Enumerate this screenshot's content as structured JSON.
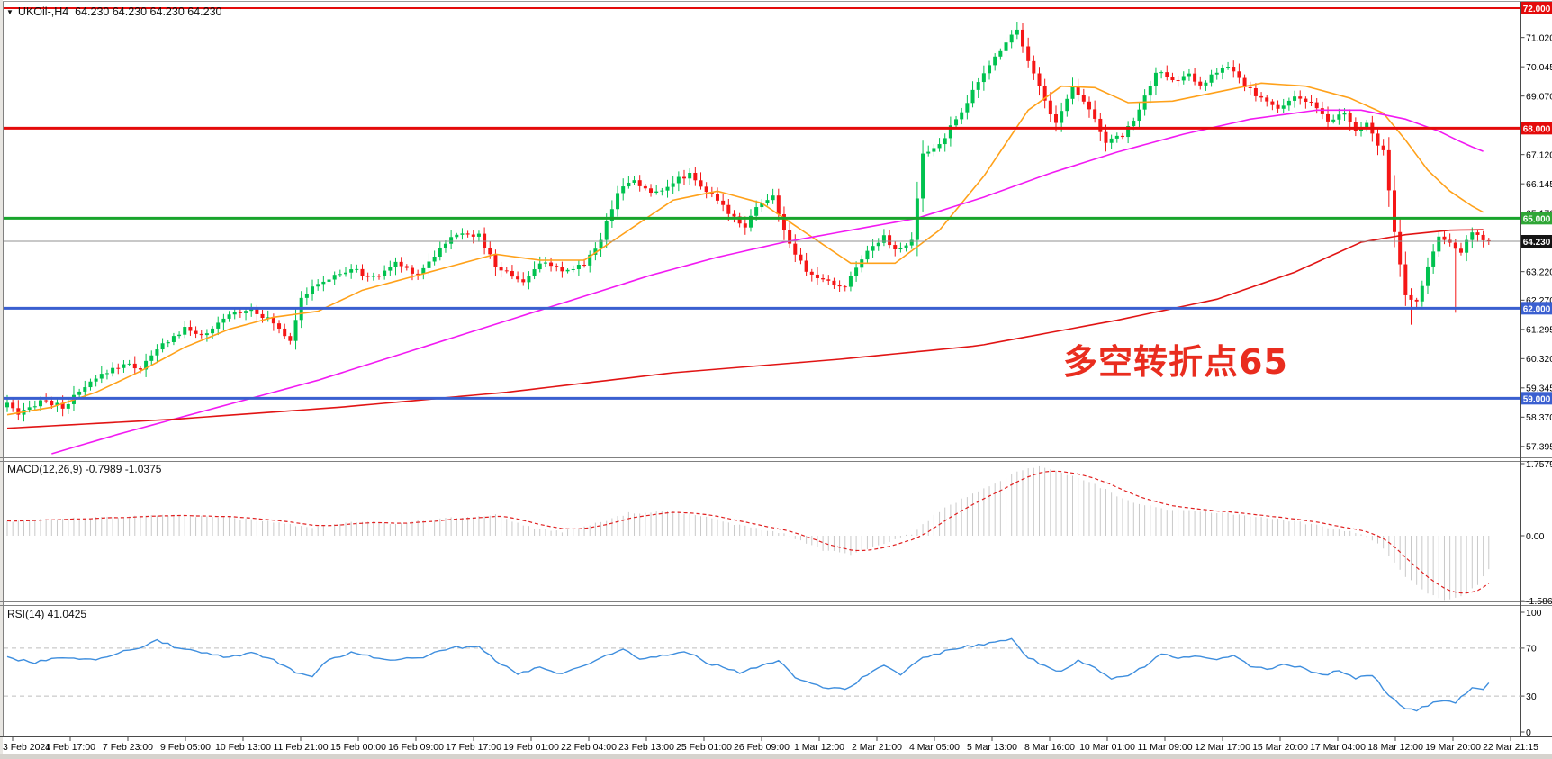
{
  "header": {
    "symbol": "UKOil-,H4",
    "quotes": "64.230 64.230 64.230 64.230"
  },
  "annotation": {
    "text": "多空转折点65",
    "color": "#e92d1f"
  },
  "indicators": {
    "macd": {
      "label": "MACD(12,26,9) -0.7989 -1.0375",
      "scale": [
        "1.7579",
        "0.00",
        "-1.5867"
      ]
    },
    "rsi": {
      "label": "RSI(14) 41.0425",
      "scale": [
        "100",
        "70",
        "30",
        "0"
      ]
    }
  },
  "price_scale": {
    "ticks": [
      {
        "label": "71.020",
        "p": 71.02
      },
      {
        "label": "70.045",
        "p": 70.045
      },
      {
        "label": "69.070",
        "p": 69.07
      },
      {
        "label": "67.120",
        "p": 67.12
      },
      {
        "label": "66.145",
        "p": 66.145
      },
      {
        "label": "65.170",
        "p": 65.17
      },
      {
        "label": "63.220",
        "p": 63.22
      },
      {
        "label": "62.270",
        "p": 62.27
      },
      {
        "label": "61.295",
        "p": 61.295
      },
      {
        "label": "60.320",
        "p": 60.32
      },
      {
        "label": "59.345",
        "p": 59.345
      },
      {
        "label": "58.370",
        "p": 58.37
      },
      {
        "label": "57.395",
        "p": 57.395
      }
    ],
    "badges": [
      {
        "label": "72.000",
        "p": 72.0,
        "bg": "#e40b0b"
      },
      {
        "label": "68.000",
        "p": 68.0,
        "bg": "#e40b0b"
      },
      {
        "label": "65.000",
        "p": 65.0,
        "bg": "#2fa636"
      },
      {
        "label": "64.230",
        "p": 64.23,
        "bg": "#141414"
      },
      {
        "label": "62.000",
        "p": 62.0,
        "bg": "#3a5fd0"
      },
      {
        "label": "59.000",
        "p": 59.0,
        "bg": "#3a5fd0"
      }
    ]
  },
  "time_axis": {
    "labels": [
      "3 Feb 2021",
      "4 Feb 17:00",
      "7 Feb 23:00",
      "9 Feb 05:00",
      "10 Feb 13:00",
      "11 Feb 21:00",
      "15 Feb 00:00",
      "16 Feb 09:00",
      "17 Feb 17:00",
      "19 Feb 01:00",
      "22 Feb 04:00",
      "23 Feb 13:00",
      "25 Feb 01:00",
      "26 Feb 09:00",
      "1 Mar 12:00",
      "2 Mar 21:00",
      "4 Mar 05:00",
      "5 Mar 13:00",
      "8 Mar 16:00",
      "10 Mar 01:00",
      "11 Mar 09:00",
      "12 Mar 17:00",
      "15 Mar 20:00",
      "17 Mar 04:00",
      "18 Mar 12:00",
      "19 Mar 20:00",
      "22 Mar 21:15"
    ]
  },
  "chart_data": {
    "type": "candlestick",
    "symbol": "UKOil",
    "timeframe": "H4",
    "title": "UKOil-,H4 64.230 64.230 64.230 64.230",
    "bars": 268,
    "last_close": 64.23,
    "price_range": [
      57.0,
      72.28
    ],
    "candle_colors": {
      "up": "#00c24f",
      "down": "#f51616"
    },
    "close_path": [
      [
        0,
        58.85
      ],
      [
        2,
        58.4
      ],
      [
        6,
        58.95
      ],
      [
        10,
        58.7
      ],
      [
        14,
        59.35
      ],
      [
        18,
        59.9
      ],
      [
        21,
        60.15
      ],
      [
        24,
        60.0
      ],
      [
        28,
        60.8
      ],
      [
        32,
        61.3
      ],
      [
        36,
        61.1
      ],
      [
        40,
        61.8
      ],
      [
        44,
        62.0
      ],
      [
        48,
        61.5
      ],
      [
        51,
        60.95
      ],
      [
        53,
        62.4
      ],
      [
        57,
        62.9
      ],
      [
        62,
        63.3
      ],
      [
        66,
        63.0
      ],
      [
        70,
        63.5
      ],
      [
        74,
        63.15
      ],
      [
        79,
        64.2
      ],
      [
        82,
        64.55
      ],
      [
        85,
        64.4
      ],
      [
        88,
        63.4
      ],
      [
        93,
        62.9
      ],
      [
        97,
        63.6
      ],
      [
        100,
        63.15
      ],
      [
        104,
        63.5
      ],
      [
        107,
        64.3
      ],
      [
        110,
        65.9
      ],
      [
        113,
        66.3
      ],
      [
        116,
        65.8
      ],
      [
        119,
        66.1
      ],
      [
        123,
        66.5
      ],
      [
        126,
        65.9
      ],
      [
        130,
        65.2
      ],
      [
        133,
        64.75
      ],
      [
        135,
        65.4
      ],
      [
        138,
        65.7
      ],
      [
        141,
        64.1
      ],
      [
        144,
        63.2
      ],
      [
        148,
        62.85
      ],
      [
        151,
        62.7
      ],
      [
        154,
        63.7
      ],
      [
        158,
        64.45
      ],
      [
        160,
        63.9
      ],
      [
        163,
        64.2
      ],
      [
        165,
        67.1
      ],
      [
        168,
        67.45
      ],
      [
        171,
        68.3
      ],
      [
        174,
        69.2
      ],
      [
        177,
        70.1
      ],
      [
        180,
        70.9
      ],
      [
        182,
        71.3
      ],
      [
        184,
        70.3
      ],
      [
        187,
        68.9
      ],
      [
        189,
        68.15
      ],
      [
        192,
        69.4
      ],
      [
        195,
        68.7
      ],
      [
        198,
        67.5
      ],
      [
        201,
        67.75
      ],
      [
        204,
        68.6
      ],
      [
        207,
        69.9
      ],
      [
        210,
        69.55
      ],
      [
        213,
        69.8
      ],
      [
        215,
        69.35
      ],
      [
        218,
        69.9
      ],
      [
        220,
        70.05
      ],
      [
        223,
        69.4
      ],
      [
        226,
        69.0
      ],
      [
        229,
        68.6
      ],
      [
        232,
        69.1
      ],
      [
        235,
        68.8
      ],
      [
        238,
        68.2
      ],
      [
        241,
        68.5
      ],
      [
        243,
        67.9
      ],
      [
        245,
        68.1
      ],
      [
        248,
        67.2
      ],
      [
        250,
        64.5
      ],
      [
        252,
        62.4
      ],
      [
        254,
        62.2
      ],
      [
        256,
        63.4
      ],
      [
        258,
        64.45
      ],
      [
        260,
        64.1
      ],
      [
        262,
        63.9
      ],
      [
        264,
        64.5
      ],
      [
        266,
        64.3
      ],
      [
        267,
        64.23
      ]
    ],
    "wick_extremes": [
      [
        182,
        "h",
        71.55
      ],
      [
        253,
        "l",
        61.45
      ],
      [
        261,
        "l",
        61.85
      ]
    ],
    "hlines": [
      {
        "p": 72.0,
        "color": "#e40b0b",
        "w": 2
      },
      {
        "p": 68.0,
        "color": "#e40b0b",
        "w": 3
      },
      {
        "p": 65.0,
        "color": "#18a42c",
        "w": 3
      },
      {
        "p": 64.23,
        "color": "#909090",
        "w": 1
      },
      {
        "p": 62.0,
        "color": "#3a5fd0",
        "w": 3
      },
      {
        "p": 59.0,
        "color": "#3a5fd0",
        "w": 3
      }
    ],
    "moving_averages": [
      {
        "name": "ma-fast-orange",
        "color": "#ffa11a",
        "path": [
          [
            0,
            58.45
          ],
          [
            8,
            58.7
          ],
          [
            16,
            59.2
          ],
          [
            24,
            59.9
          ],
          [
            32,
            60.7
          ],
          [
            40,
            61.3
          ],
          [
            48,
            61.7
          ],
          [
            56,
            61.9
          ],
          [
            64,
            62.6
          ],
          [
            72,
            63.0
          ],
          [
            80,
            63.4
          ],
          [
            88,
            63.8
          ],
          [
            96,
            63.6
          ],
          [
            104,
            63.6
          ],
          [
            112,
            64.6
          ],
          [
            120,
            65.6
          ],
          [
            128,
            65.9
          ],
          [
            136,
            65.5
          ],
          [
            144,
            64.5
          ],
          [
            152,
            63.5
          ],
          [
            160,
            63.5
          ],
          [
            168,
            64.6
          ],
          [
            176,
            66.4
          ],
          [
            184,
            68.6
          ],
          [
            190,
            69.4
          ],
          [
            196,
            69.35
          ],
          [
            202,
            68.85
          ],
          [
            210,
            68.9
          ],
          [
            218,
            69.2
          ],
          [
            226,
            69.5
          ],
          [
            234,
            69.4
          ],
          [
            242,
            69.0
          ],
          [
            248,
            68.5
          ],
          [
            252,
            67.6
          ],
          [
            256,
            66.6
          ],
          [
            260,
            65.9
          ],
          [
            264,
            65.4
          ],
          [
            267,
            65.1
          ]
        ]
      },
      {
        "name": "ma-mid-magenta",
        "color": "#f21af2",
        "path": [
          [
            8,
            57.15
          ],
          [
            20,
            57.8
          ],
          [
            32,
            58.4
          ],
          [
            44,
            59.0
          ],
          [
            56,
            59.6
          ],
          [
            68,
            60.3
          ],
          [
            80,
            61.0
          ],
          [
            92,
            61.7
          ],
          [
            104,
            62.4
          ],
          [
            116,
            63.1
          ],
          [
            128,
            63.7
          ],
          [
            140,
            64.2
          ],
          [
            152,
            64.6
          ],
          [
            164,
            65.0
          ],
          [
            176,
            65.7
          ],
          [
            188,
            66.5
          ],
          [
            200,
            67.2
          ],
          [
            212,
            67.8
          ],
          [
            224,
            68.3
          ],
          [
            236,
            68.6
          ],
          [
            244,
            68.6
          ],
          [
            252,
            68.3
          ],
          [
            258,
            67.9
          ],
          [
            263,
            67.45
          ],
          [
            267,
            67.15
          ]
        ]
      },
      {
        "name": "ma-slow-red",
        "color": "#e11414",
        "path": [
          [
            0,
            58.0
          ],
          [
            30,
            58.3
          ],
          [
            60,
            58.7
          ],
          [
            90,
            59.2
          ],
          [
            120,
            59.85
          ],
          [
            150,
            60.3
          ],
          [
            175,
            60.75
          ],
          [
            200,
            61.6
          ],
          [
            218,
            62.3
          ],
          [
            232,
            63.2
          ],
          [
            244,
            64.2
          ],
          [
            252,
            64.45
          ],
          [
            260,
            64.6
          ],
          [
            267,
            64.62
          ]
        ]
      }
    ],
    "macd": {
      "params": "12,26,9",
      "current": [
        -0.7989,
        -1.0375
      ],
      "range": [
        -1.5867,
        1.7579
      ],
      "hist_color": "#c9c9c9",
      "signal_color": "#e02020",
      "values": [
        [
          0,
          0.35
        ],
        [
          10,
          0.42
        ],
        [
          20,
          0.45
        ],
        [
          30,
          0.5
        ],
        [
          40,
          0.45
        ],
        [
          50,
          0.3
        ],
        [
          55,
          0.18
        ],
        [
          62,
          0.35
        ],
        [
          70,
          0.3
        ],
        [
          80,
          0.45
        ],
        [
          88,
          0.5
        ],
        [
          95,
          0.18
        ],
        [
          100,
          0.1
        ],
        [
          106,
          0.3
        ],
        [
          112,
          0.55
        ],
        [
          120,
          0.6
        ],
        [
          126,
          0.45
        ],
        [
          132,
          0.25
        ],
        [
          140,
          0.05
        ],
        [
          147,
          -0.35
        ],
        [
          152,
          -0.45
        ],
        [
          158,
          -0.2
        ],
        [
          163,
          0.05
        ],
        [
          168,
          0.6
        ],
        [
          175,
          1.1
        ],
        [
          182,
          1.55
        ],
        [
          186,
          1.7
        ],
        [
          190,
          1.55
        ],
        [
          196,
          1.25
        ],
        [
          202,
          0.85
        ],
        [
          208,
          0.65
        ],
        [
          214,
          0.6
        ],
        [
          220,
          0.55
        ],
        [
          226,
          0.45
        ],
        [
          232,
          0.35
        ],
        [
          238,
          0.2
        ],
        [
          244,
          0.05
        ],
        [
          248,
          -0.3
        ],
        [
          252,
          -1.0
        ],
        [
          256,
          -1.4
        ],
        [
          259,
          -1.55
        ],
        [
          262,
          -1.5
        ],
        [
          265,
          -1.2
        ],
        [
          267,
          -0.8
        ]
      ]
    },
    "rsi": {
      "period": 14,
      "current": 41.0425,
      "levels": [
        70,
        30
      ],
      "color": "#3e8ede",
      "values": [
        [
          0,
          62
        ],
        [
          5,
          58
        ],
        [
          10,
          63
        ],
        [
          15,
          60
        ],
        [
          20,
          66
        ],
        [
          24,
          71
        ],
        [
          27,
          77
        ],
        [
          30,
          71
        ],
        [
          35,
          66
        ],
        [
          40,
          62
        ],
        [
          44,
          66
        ],
        [
          48,
          60
        ],
        [
          52,
          50
        ],
        [
          55,
          46
        ],
        [
          57,
          58
        ],
        [
          62,
          67
        ],
        [
          68,
          60
        ],
        [
          75,
          63
        ],
        [
          80,
          70
        ],
        [
          85,
          72
        ],
        [
          88,
          60
        ],
        [
          92,
          48
        ],
        [
          96,
          55
        ],
        [
          100,
          48
        ],
        [
          106,
          60
        ],
        [
          111,
          70
        ],
        [
          114,
          60
        ],
        [
          118,
          64
        ],
        [
          122,
          68
        ],
        [
          126,
          58
        ],
        [
          132,
          50
        ],
        [
          136,
          56
        ],
        [
          139,
          60
        ],
        [
          142,
          45
        ],
        [
          147,
          38
        ],
        [
          151,
          35
        ],
        [
          155,
          48
        ],
        [
          158,
          55
        ],
        [
          161,
          48
        ],
        [
          165,
          62
        ],
        [
          171,
          70
        ],
        [
          177,
          74
        ],
        [
          181,
          78
        ],
        [
          184,
          62
        ],
        [
          187,
          55
        ],
        [
          190,
          50
        ],
        [
          193,
          60
        ],
        [
          196,
          54
        ],
        [
          199,
          45
        ],
        [
          202,
          48
        ],
        [
          205,
          55
        ],
        [
          208,
          65
        ],
        [
          211,
          62
        ],
        [
          214,
          63
        ],
        [
          218,
          60
        ],
        [
          221,
          64
        ],
        [
          224,
          55
        ],
        [
          227,
          52
        ],
        [
          230,
          56
        ],
        [
          234,
          53
        ],
        [
          237,
          47
        ],
        [
          240,
          52
        ],
        [
          243,
          45
        ],
        [
          246,
          48
        ],
        [
          249,
          30
        ],
        [
          252,
          20
        ],
        [
          254,
          18
        ],
        [
          257,
          25
        ],
        [
          259,
          26
        ],
        [
          261,
          24
        ],
        [
          264,
          38
        ],
        [
          266,
          36
        ],
        [
          267,
          41
        ]
      ]
    }
  }
}
